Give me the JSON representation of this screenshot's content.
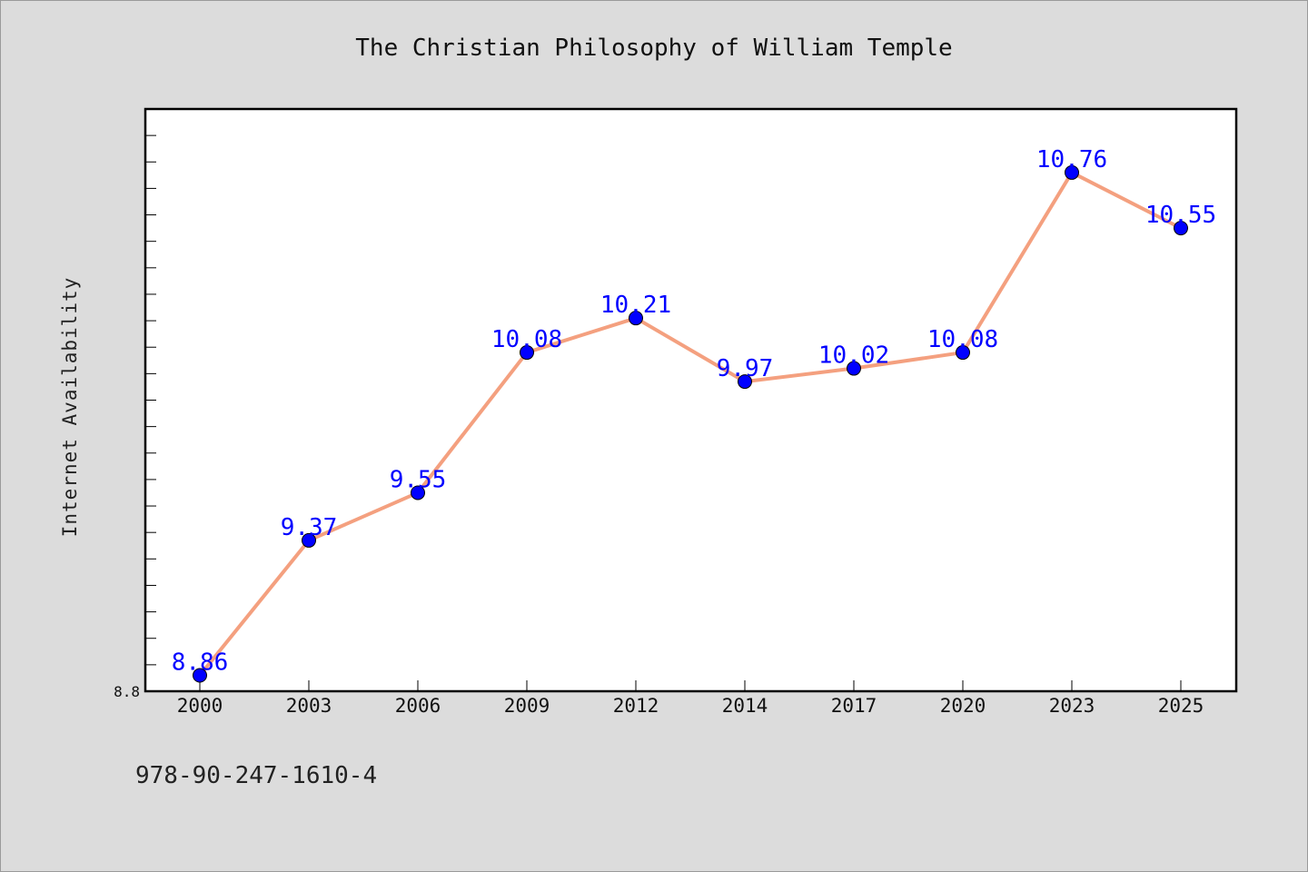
{
  "chart_data": {
    "type": "line",
    "title": "The Christian Philosophy of William Temple",
    "ylabel": "Internet Availability",
    "xlabel": "",
    "categories": [
      "2000",
      "2003",
      "2006",
      "2009",
      "2012",
      "2014",
      "2017",
      "2020",
      "2023",
      "2025"
    ],
    "series": [
      {
        "values": [
          8.86,
          9.37,
          9.55,
          10.08,
          10.21,
          9.97,
          10.02,
          10.08,
          10.76,
          10.55
        ],
        "labels": [
          "8.86",
          "9.37",
          "9.55",
          "10.08",
          "10.21",
          "9.97",
          "10.02",
          "10.08",
          "10.76",
          "10.55"
        ]
      }
    ],
    "ylim": [
      8.8,
      11.0
    ],
    "y_tick_labels": [
      "8.8"
    ],
    "grid": false,
    "legend": "none",
    "colors": {
      "line": "#f4a07f",
      "marker": "#0000ff",
      "label": "#0000ff",
      "background": "#dcdcdc",
      "plot_bg": "#ffffff"
    }
  },
  "footer_text": "978-90-247-1610-4"
}
